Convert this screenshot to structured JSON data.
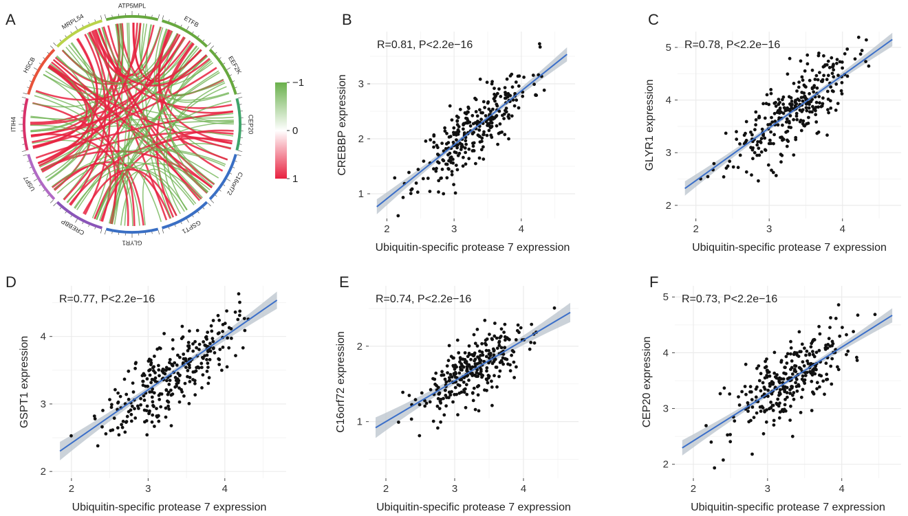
{
  "panel_letters": [
    "A",
    "B",
    "C",
    "D",
    "E",
    "F"
  ],
  "colors": {
    "negative": "#6ab04c",
    "positive": "#e8213f",
    "regression_line": "#3b6fc9",
    "confidence_band": "#b9c3cc",
    "points": "#111111",
    "grid": "#ebebeb"
  },
  "chart_data": [
    {
      "panel": "A",
      "type": "chord",
      "sectors": [
        {
          "name": "ATP5MPL",
          "color": "#68a83f"
        },
        {
          "name": "ETFB",
          "color": "#68a83f"
        },
        {
          "name": "EEF2K",
          "color": "#68a83f"
        },
        {
          "name": "CEP20",
          "color": "#3fa46a"
        },
        {
          "name": "C16orf72",
          "color": "#3a6fc4"
        },
        {
          "name": "GSPT1",
          "color": "#3a6fc4"
        },
        {
          "name": "GLYR1",
          "color": "#3a6fc4"
        },
        {
          "name": "CREBBP",
          "color": "#8a55b8"
        },
        {
          "name": "USP7",
          "color": "#b06ac4"
        },
        {
          "name": "ITIH4",
          "color": "#d8326a"
        },
        {
          "name": "HSCB",
          "color": "#e8533a"
        },
        {
          "name": "MRPL54",
          "color": "#b9d34a"
        }
      ],
      "colorbar": {
        "ticks": [
          "−1",
          "0",
          "1"
        ],
        "colors": [
          "#6ab04c",
          "#ffffff",
          "#e8213f"
        ]
      }
    },
    {
      "panel": "B",
      "type": "scatter",
      "annotation": "R=0.81, P<2.2e−16",
      "xlabel": "Ubiquitin-specific protease 7 expression",
      "ylabel": "CREBBP expression",
      "xlim": [
        1.75,
        4.8
      ],
      "ylim": [
        0.55,
        3.95
      ],
      "xticks": [
        2,
        3,
        4
      ],
      "yticks": [
        1,
        2,
        3
      ],
      "slope": 0.98,
      "intercept": -1.05,
      "r": 0.81,
      "n": 300,
      "seed": 11
    },
    {
      "panel": "C",
      "type": "scatter",
      "annotation": "R=0.78, P<2.2e−16",
      "xlabel": "Ubiquitin-specific protease 7 expression",
      "ylabel": "GLYR1 expression",
      "xlim": [
        1.75,
        4.8
      ],
      "ylim": [
        1.75,
        5.3
      ],
      "xticks": [
        2,
        3,
        4
      ],
      "yticks": [
        2,
        3,
        4,
        5
      ],
      "slope": 1.0,
      "intercept": 0.47,
      "r": 0.78,
      "n": 300,
      "seed": 23
    },
    {
      "panel": "D",
      "type": "scatter",
      "annotation": "R=0.77, P<2.2e−16",
      "xlabel": "Ubiquitin-specific protease 7 expression",
      "ylabel": "GSPT1 expression",
      "xlim": [
        1.75,
        4.8
      ],
      "ylim": [
        1.9,
        4.75
      ],
      "xticks": [
        2,
        3,
        4
      ],
      "yticks": [
        2,
        3,
        4
      ],
      "slope": 0.79,
      "intercept": 0.84,
      "r": 0.77,
      "n": 300,
      "seed": 37
    },
    {
      "panel": "E",
      "type": "scatter",
      "annotation": "R=0.74, P<2.2e−16",
      "xlabel": "Ubiquitin-specific protease 7 expression",
      "ylabel": "C16orf72 expression",
      "xlim": [
        1.75,
        4.8
      ],
      "ylim": [
        0.25,
        2.8
      ],
      "xticks": [
        2,
        3,
        4
      ],
      "yticks": [
        1,
        2
      ],
      "slope": 0.54,
      "intercept": -0.08,
      "r": 0.74,
      "n": 300,
      "seed": 53
    },
    {
      "panel": "F",
      "type": "scatter",
      "annotation": "R=0.73, P<2.2e−16",
      "xlabel": "Ubiquitin-specific protease 7 expression",
      "ylabel": "CEP20 expression",
      "xlim": [
        1.75,
        4.8
      ],
      "ylim": [
        1.75,
        5.2
      ],
      "xticks": [
        2,
        3,
        4
      ],
      "yticks": [
        2,
        3,
        4,
        5
      ],
      "slope": 0.84,
      "intercept": 0.74,
      "r": 0.73,
      "n": 300,
      "seed": 71
    }
  ]
}
